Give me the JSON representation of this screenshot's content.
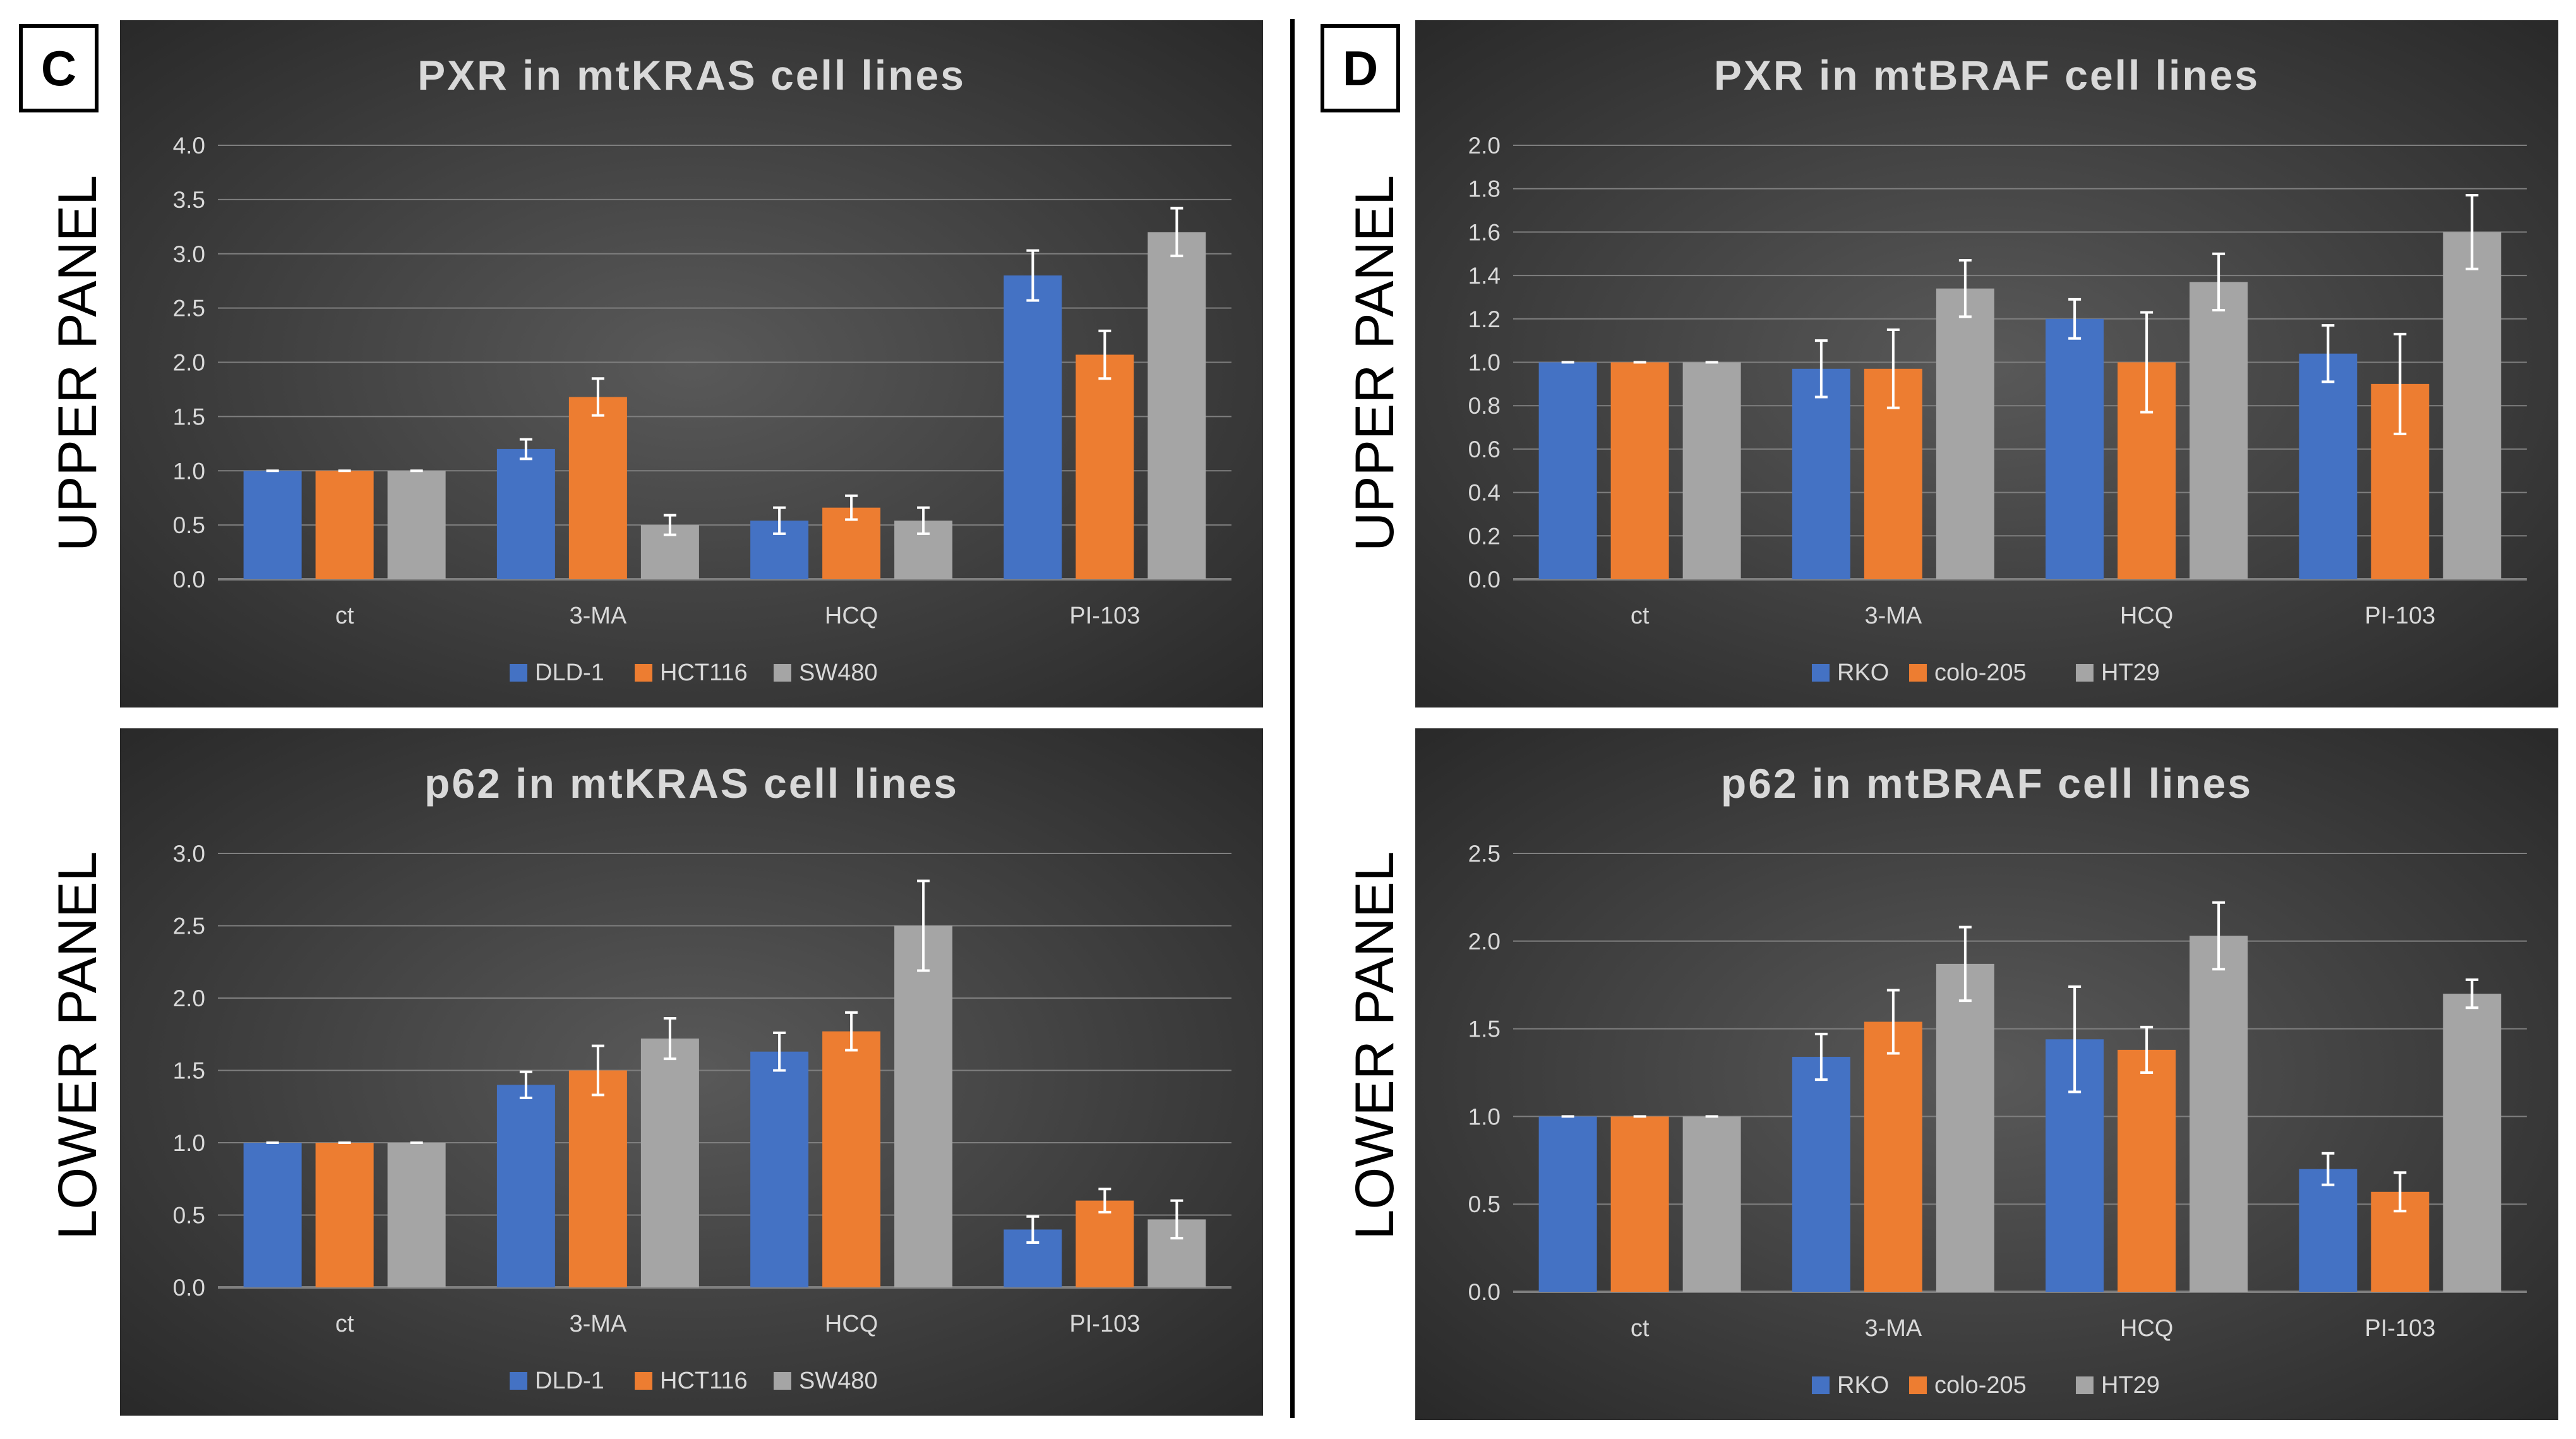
{
  "panels": {
    "C": {
      "letter": "C"
    },
    "D": {
      "letter": "D"
    }
  },
  "row_labels": {
    "C_upper": "UPPER PANEL",
    "C_lower": "LOWER PANEL",
    "D_upper": "UPPER PANEL",
    "D_lower": "LOWER PANEL"
  },
  "colors": {
    "series1": "#4472C4",
    "series2": "#ED7D31",
    "series3": "#A5A5A5",
    "chart_bg_center": "#595959",
    "chart_bg_edge": "#262626",
    "text": "#D9D9D9",
    "gridline": "#7F7F7F",
    "error_bar": "#FFFFFF"
  },
  "chart_data": [
    {
      "id": "C_upper",
      "type": "bar",
      "title": "PXR in mtKRAS cell lines",
      "categories": [
        "ct",
        "3-MA",
        "HCQ",
        "PI-103"
      ],
      "ylim": [
        0,
        4.0
      ],
      "yticks": [
        "0.0",
        "0.5",
        "1.0",
        "1.5",
        "2.0",
        "2.5",
        "3.0",
        "3.5",
        "4.0"
      ],
      "grid": true,
      "legend": "bottom",
      "series": [
        {
          "name": "DLD-1",
          "values": [
            1.0,
            1.2,
            0.54,
            2.8
          ],
          "errors": [
            0.01,
            0.09,
            0.12,
            0.23
          ]
        },
        {
          "name": "HCT116",
          "values": [
            1.0,
            1.68,
            0.66,
            2.07
          ],
          "errors": [
            0.01,
            0.17,
            0.11,
            0.22
          ]
        },
        {
          "name": "SW480",
          "values": [
            1.0,
            0.5,
            0.54,
            3.2
          ],
          "errors": [
            0.01,
            0.09,
            0.12,
            0.22
          ]
        }
      ]
    },
    {
      "id": "C_lower",
      "type": "bar",
      "title": "p62 in mtKRAS cell lines",
      "categories": [
        "ct",
        "3-MA",
        "HCQ",
        "PI-103"
      ],
      "ylim": [
        0,
        3.0
      ],
      "yticks": [
        "0.0",
        "0.5",
        "1.0",
        "1.5",
        "2.0",
        "2.5",
        "3.0"
      ],
      "grid": true,
      "legend": "bottom",
      "series": [
        {
          "name": "DLD-1",
          "values": [
            1.0,
            1.4,
            1.63,
            0.4
          ],
          "errors": [
            0.01,
            0.09,
            0.13,
            0.09
          ]
        },
        {
          "name": "HCT116",
          "values": [
            1.0,
            1.5,
            1.77,
            0.6
          ],
          "errors": [
            0.01,
            0.17,
            0.13,
            0.08
          ]
        },
        {
          "name": "SW480",
          "values": [
            1.0,
            1.72,
            2.5,
            0.47
          ],
          "errors": [
            0.01,
            0.14,
            0.31,
            0.13
          ]
        }
      ]
    },
    {
      "id": "D_upper",
      "type": "bar",
      "title": "PXR in mtBRAF cell lines",
      "categories": [
        "ct",
        "3-MA",
        "HCQ",
        "PI-103"
      ],
      "ylim": [
        0,
        2.0
      ],
      "yticks": [
        "0.0",
        "0.2",
        "0.4",
        "0.6",
        "0.8",
        "1.0",
        "1.2",
        "1.4",
        "1.6",
        "1.8",
        "2.0"
      ],
      "grid": true,
      "legend": "bottom",
      "series": [
        {
          "name": "RKO",
          "values": [
            1.0,
            0.97,
            1.2,
            1.04
          ],
          "errors": [
            0.005,
            0.13,
            0.09,
            0.13
          ]
        },
        {
          "name": "colo-205",
          "values": [
            1.0,
            0.97,
            1.0,
            0.9
          ],
          "errors": [
            0.005,
            0.18,
            0.23,
            0.23
          ]
        },
        {
          "name": "HT29",
          "values": [
            1.0,
            1.34,
            1.37,
            1.6
          ],
          "errors": [
            0.005,
            0.13,
            0.13,
            0.17
          ]
        }
      ]
    },
    {
      "id": "D_lower",
      "type": "bar",
      "title": "p62 in mtBRAF cell lines",
      "categories": [
        "ct",
        "3-MA",
        "HCQ",
        "PI-103"
      ],
      "ylim": [
        0,
        2.5
      ],
      "yticks": [
        "0.0",
        "0.5",
        "1.0",
        "1.5",
        "2.0",
        "2.5"
      ],
      "grid": true,
      "legend": "bottom",
      "series": [
        {
          "name": "RKO",
          "values": [
            1.0,
            1.34,
            1.44,
            0.7
          ],
          "errors": [
            0.01,
            0.13,
            0.3,
            0.09
          ]
        },
        {
          "name": "colo-205",
          "values": [
            1.0,
            1.54,
            1.38,
            0.57
          ],
          "errors": [
            0.01,
            0.18,
            0.13,
            0.11
          ]
        },
        {
          "name": "HT29",
          "values": [
            1.0,
            1.87,
            2.03,
            1.7
          ],
          "errors": [
            0.01,
            0.21,
            0.19,
            0.08
          ]
        }
      ]
    }
  ]
}
